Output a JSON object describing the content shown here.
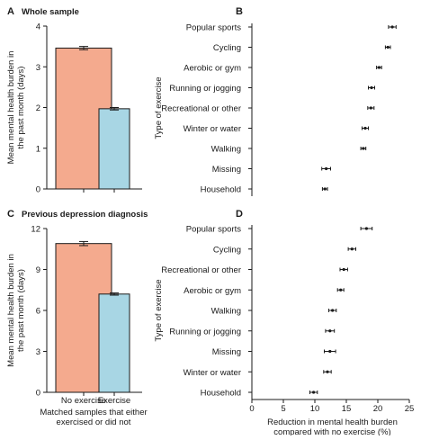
{
  "chart_data": [
    {
      "panel": "A",
      "title": "Whole sample",
      "type": "bar",
      "ylabel_lines": [
        "Mean mental health burden in",
        "the past month (days)"
      ],
      "ylim": [
        0,
        4
      ],
      "yticks": [
        0,
        1,
        2,
        3,
        4
      ],
      "categories": [
        "No exercise",
        "Exercise"
      ],
      "values": [
        3.46,
        1.97
      ],
      "errors": [
        0.04,
        0.03
      ],
      "bar_colors": [
        "#f4aa8e",
        "#a8d6e4"
      ],
      "show_xlabels": false
    },
    {
      "panel": "B",
      "type": "scatter",
      "ylabel": "Type of exercise",
      "xlim": [
        0,
        25
      ],
      "categories": [
        "Popular sports",
        "Cycling",
        "Aerobic or gym",
        "Running or jogging",
        "Recreational or other",
        "Winter or water",
        "Walking",
        "Missing",
        "Household"
      ],
      "values": [
        22.3,
        21.6,
        20.2,
        19.0,
        18.9,
        18.0,
        17.7,
        11.8,
        11.6
      ],
      "errors": [
        0.6,
        0.4,
        0.4,
        0.5,
        0.5,
        0.5,
        0.4,
        0.7,
        0.4
      ],
      "show_xticks": false
    },
    {
      "panel": "C",
      "title": "Previous depression diagnosis",
      "type": "bar",
      "ylabel_lines": [
        "Mean mental health burden in",
        "the past month (days)"
      ],
      "ylim": [
        0,
        12
      ],
      "yticks": [
        0,
        3,
        6,
        9,
        12
      ],
      "categories": [
        "No exercise",
        "Exercise"
      ],
      "values": [
        10.9,
        7.2
      ],
      "errors": [
        0.15,
        0.08
      ],
      "bar_colors": [
        "#f4aa8e",
        "#a8d6e4"
      ],
      "show_xlabels": true,
      "xlabel_lines": [
        "Matched samples that either",
        "exercised or did not"
      ]
    },
    {
      "panel": "D",
      "type": "scatter",
      "ylabel": "Type of exercise",
      "xlim": [
        0,
        25
      ],
      "xticks": [
        0,
        5,
        10,
        15,
        20,
        25
      ],
      "categories": [
        "Popular sports",
        "Cycling",
        "Recreational or other",
        "Aerobic or gym",
        "Walking",
        "Running or jogging",
        "Missing",
        "Winter or water",
        "Household"
      ],
      "values": [
        18.2,
        15.9,
        14.6,
        14.1,
        12.8,
        12.4,
        12.4,
        12.0,
        9.8
      ],
      "errors": [
        0.9,
        0.6,
        0.6,
        0.5,
        0.6,
        0.7,
        0.9,
        0.6,
        0.6
      ],
      "show_xticks": true,
      "xlabel_lines": [
        "Reduction in mental health burden",
        "compared with no exercise (%)"
      ]
    }
  ],
  "colors": {
    "axis": "#1a1a1a",
    "grid_tick": "#1a1a1a",
    "no_exercise": "#f4aa8e",
    "exercise": "#a8d6e4"
  }
}
